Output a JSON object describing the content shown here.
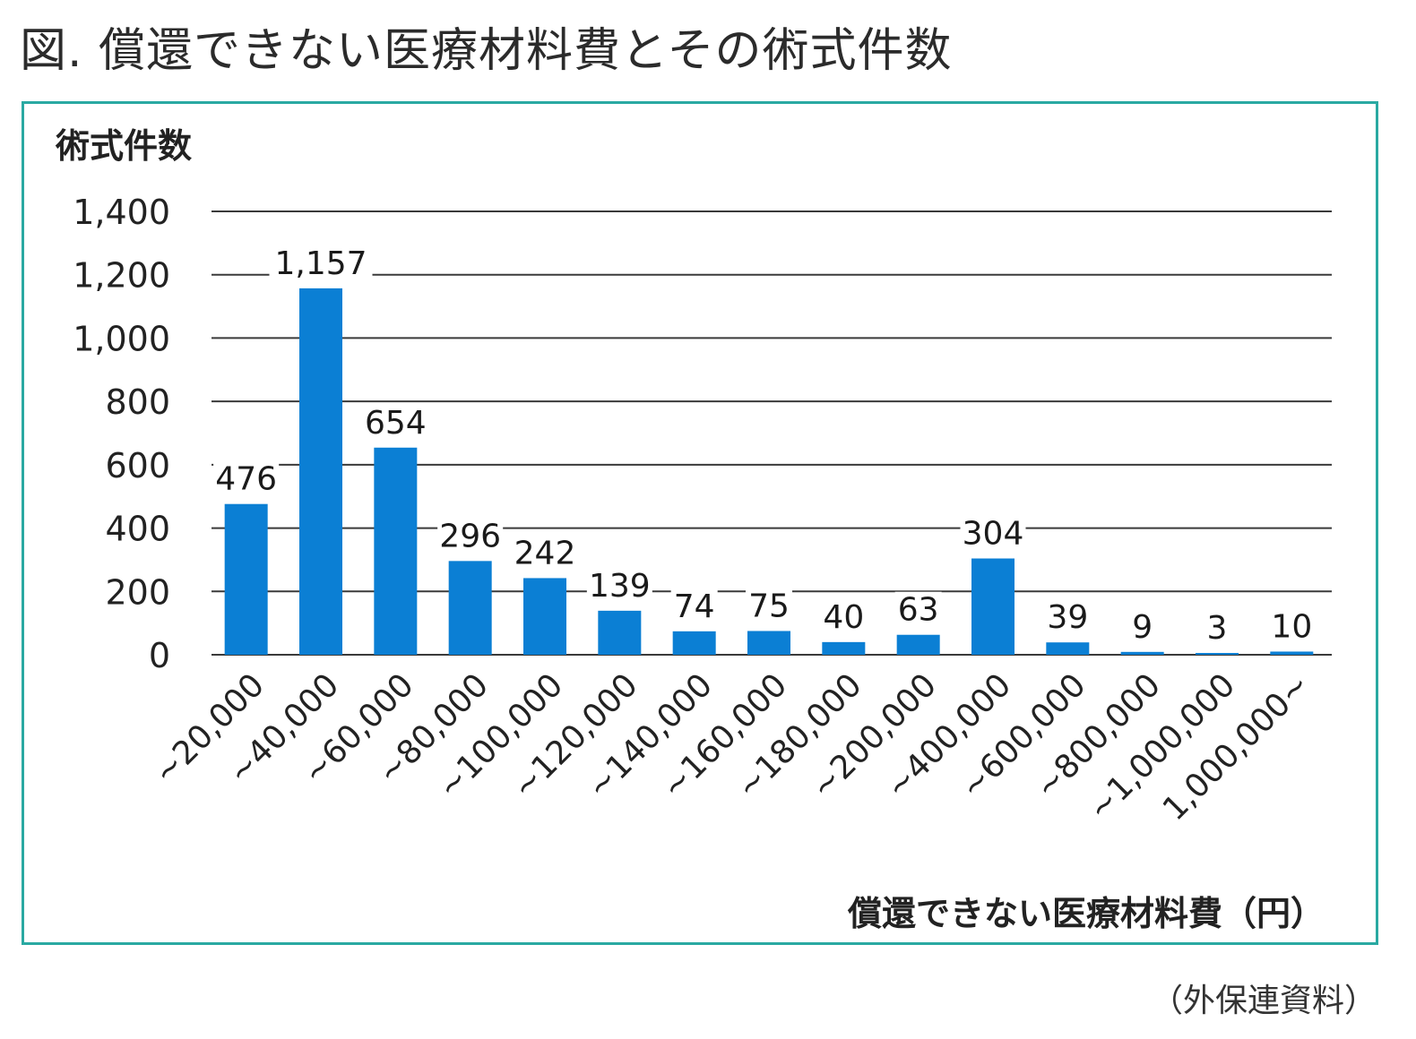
{
  "figure": {
    "title": "図. 償還できない医療材料費とその術式件数",
    "source": "（外保連資料）",
    "frame_color": "#2aa9a2"
  },
  "chart_data": {
    "type": "bar",
    "ylabel": "術式件数",
    "xlabel": "償還できない医療材料費（円）",
    "ylim": [
      0,
      1400
    ],
    "yticks": [
      0,
      200,
      400,
      600,
      800,
      1000,
      1200,
      1400
    ],
    "ytick_labels": [
      "0",
      "200",
      "400",
      "600",
      "800",
      "1,000",
      "1,200",
      "1,400"
    ],
    "grid": true,
    "bar_color": "#0b7fd4",
    "categories": [
      "~20,000",
      "~40,000",
      "~60,000",
      "~80,000",
      "~100,000",
      "~120,000",
      "~140,000",
      "~160,000",
      "~180,000",
      "~200,000",
      "~400,000",
      "~600,000",
      "~800,000",
      "~1,000,000",
      "1,000,000~"
    ],
    "values": [
      476,
      1157,
      654,
      296,
      242,
      139,
      74,
      75,
      40,
      63,
      304,
      39,
      9,
      3,
      10
    ],
    "value_labels": [
      "476",
      "1,157",
      "654",
      "296",
      "242",
      "139",
      "74",
      "75",
      "40",
      "63",
      "304",
      "39",
      "9",
      "3",
      "10"
    ]
  }
}
